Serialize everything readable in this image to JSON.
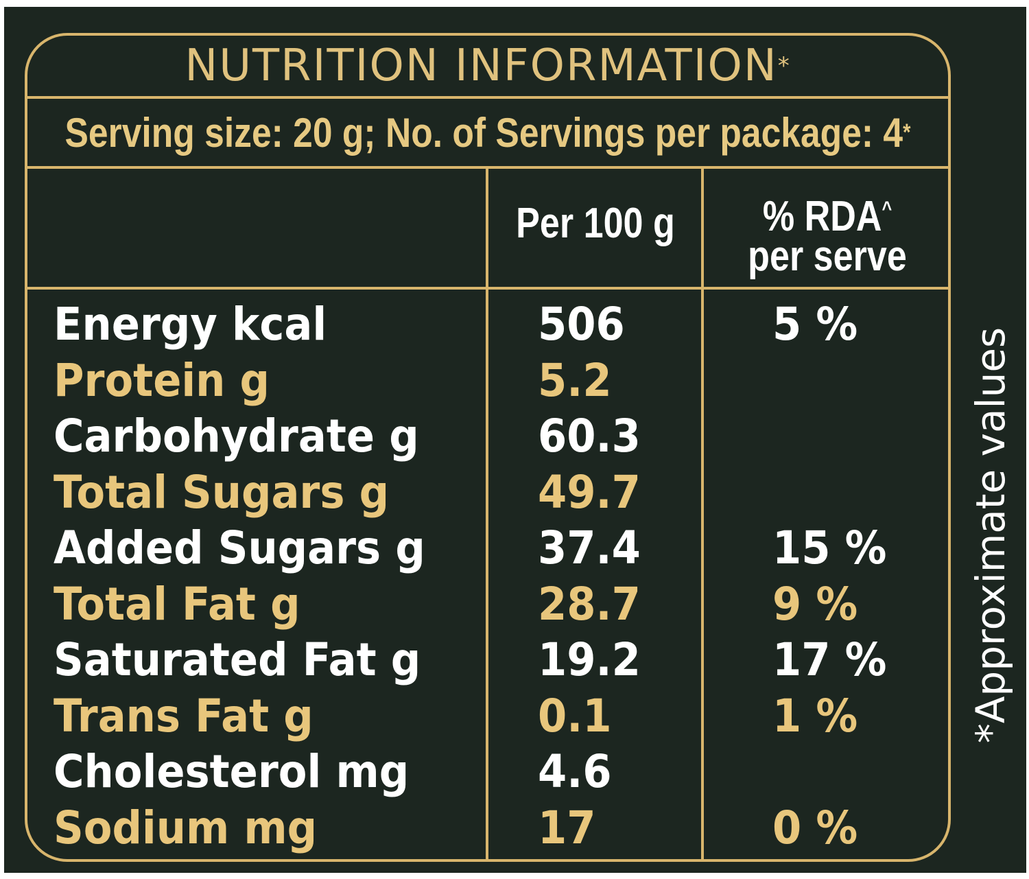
{
  "title": {
    "text": "NUTRITION INFORMATION",
    "mark": "*"
  },
  "serving": {
    "text": "Serving size: 20 g; No. of Servings per package: 4",
    "mark": "*"
  },
  "headers": {
    "per_100g": "Per 100 g",
    "rda_line1": "% RDA",
    "rda_mark": "^",
    "rda_line2": "per serve"
  },
  "rows": [
    {
      "name": "Energy kcal",
      "value": "506",
      "rda": "5 %",
      "color": "#ffffff"
    },
    {
      "name": "Protein g",
      "value": "5.2",
      "rda": "",
      "color": "#e8c67c"
    },
    {
      "name": "Carbohydrate g",
      "value": "60.3",
      "rda": "",
      "color": "#ffffff"
    },
    {
      "name": "Total Sugars g",
      "value": "49.7",
      "rda": "",
      "color": "#e8c67c"
    },
    {
      "name": "Added Sugars g",
      "value": "37.4",
      "rda": "15 %",
      "color": "#ffffff"
    },
    {
      "name": "Total Fat g",
      "value": "28.7",
      "rda": "9 %",
      "color": "#e8c67c"
    },
    {
      "name": "Saturated Fat g",
      "value": "19.2",
      "rda": "17 %",
      "color": "#ffffff"
    },
    {
      "name": "Trans Fat g",
      "value": "0.1",
      "rda": "1 %",
      "color": "#e8c67c"
    },
    {
      "name": "Cholesterol mg",
      "value": "4.6",
      "rda": "",
      "color": "#ffffff"
    },
    {
      "name": "Sodium mg",
      "value": "17",
      "rda": "0 %",
      "color": "#e8c67c"
    }
  ],
  "side_note": "*Approximate values",
  "colors": {
    "background": "#1c2620",
    "gold": "#d8b56c",
    "text_white": "#ffffff",
    "text_gold": "#e8c67c"
  }
}
